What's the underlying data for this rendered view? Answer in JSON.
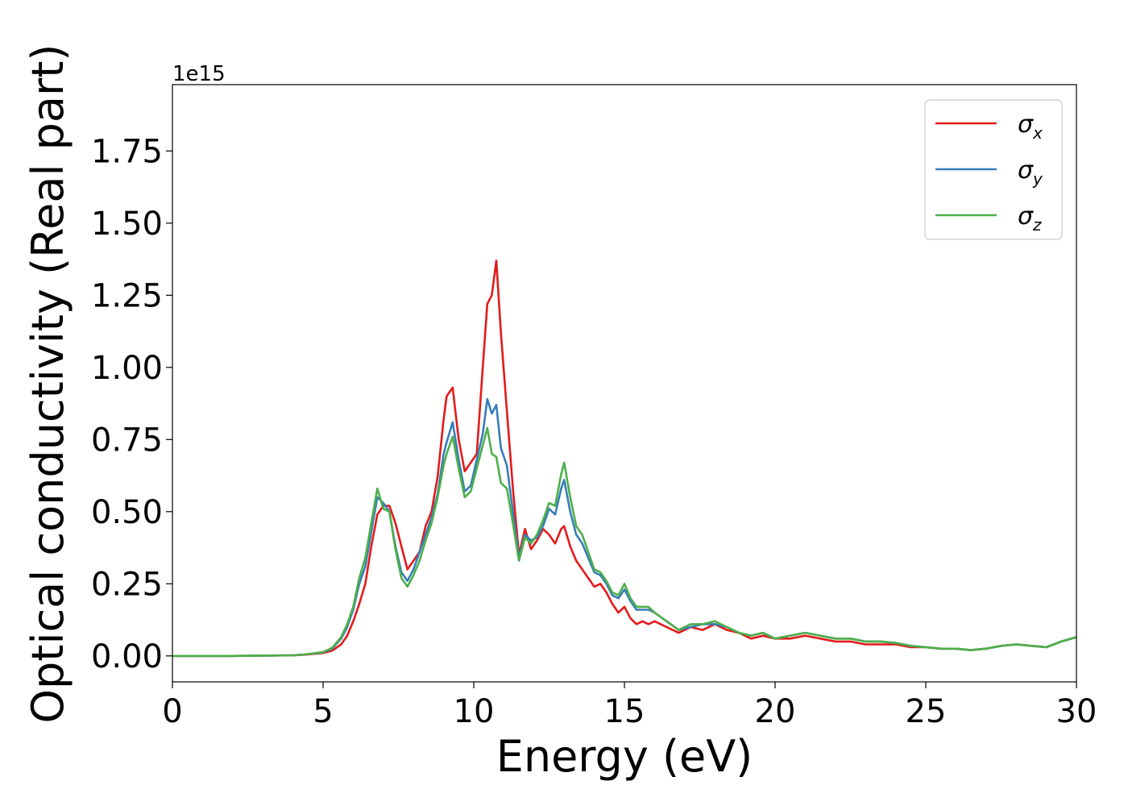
{
  "chart_data": {
    "type": "line",
    "xlabel": "Energy (eV)",
    "ylabel": "Optical conductivity (Real part)",
    "y_offset_label": "1e15",
    "xlim": [
      0,
      30
    ],
    "ylim": [
      -0.09,
      1.98
    ],
    "y_scale_factor": 1000000000000000.0,
    "x_ticks": [
      0,
      5,
      10,
      15,
      20,
      25,
      30
    ],
    "x_tick_labels": [
      "0",
      "5",
      "10",
      "15",
      "20",
      "25",
      "30"
    ],
    "y_ticks": [
      0.0,
      0.25,
      0.5,
      0.75,
      1.0,
      1.25,
      1.5,
      1.75
    ],
    "y_tick_labels": [
      "0.00",
      "0.25",
      "0.50",
      "0.75",
      "1.00",
      "1.25",
      "1.50",
      "1.75"
    ],
    "grid": false,
    "legend_position": "top-right",
    "series": [
      {
        "name": "σx",
        "legend_base": "σ",
        "legend_sub": "x",
        "color": "#e41a1c",
        "x": [
          0,
          2,
          4,
          4.5,
          5,
          5.3,
          5.6,
          5.8,
          6.0,
          6.2,
          6.4,
          6.6,
          6.8,
          7.0,
          7.2,
          7.4,
          7.6,
          7.8,
          8.0,
          8.2,
          8.4,
          8.6,
          8.8,
          9.0,
          9.1,
          9.3,
          9.5,
          9.7,
          9.9,
          10.1,
          10.3,
          10.45,
          10.6,
          10.75,
          10.9,
          11.1,
          11.3,
          11.5,
          11.7,
          11.9,
          12.1,
          12.3,
          12.5,
          12.7,
          12.9,
          13.0,
          13.2,
          13.4,
          13.6,
          13.8,
          14.0,
          14.2,
          14.4,
          14.6,
          14.8,
          15.0,
          15.2,
          15.4,
          15.6,
          15.8,
          16.0,
          16.4,
          16.8,
          17.2,
          17.6,
          18.0,
          18.4,
          18.8,
          19.2,
          19.6,
          20.0,
          20.5,
          21.0,
          21.5,
          22.0,
          22.5,
          23.0,
          23.5,
          24.0,
          24.5,
          25.0,
          25.5,
          26.0,
          26.5,
          27.0,
          27.5,
          28.0,
          28.5,
          29.0,
          29.5,
          30.0
        ],
        "y": [
          0.0,
          0.0,
          0.002,
          0.005,
          0.01,
          0.018,
          0.04,
          0.07,
          0.12,
          0.18,
          0.25,
          0.38,
          0.49,
          0.52,
          0.52,
          0.46,
          0.38,
          0.3,
          0.33,
          0.36,
          0.45,
          0.5,
          0.62,
          0.82,
          0.9,
          0.93,
          0.75,
          0.64,
          0.67,
          0.7,
          1.0,
          1.22,
          1.25,
          1.37,
          1.12,
          0.85,
          0.58,
          0.35,
          0.44,
          0.37,
          0.4,
          0.44,
          0.42,
          0.39,
          0.44,
          0.45,
          0.38,
          0.33,
          0.3,
          0.27,
          0.24,
          0.25,
          0.22,
          0.18,
          0.15,
          0.17,
          0.13,
          0.11,
          0.12,
          0.11,
          0.12,
          0.1,
          0.08,
          0.1,
          0.09,
          0.11,
          0.09,
          0.08,
          0.06,
          0.07,
          0.06,
          0.06,
          0.07,
          0.06,
          0.05,
          0.05,
          0.04,
          0.04,
          0.04,
          0.03,
          0.03,
          0.025,
          0.025,
          0.02,
          0.025,
          0.035,
          0.04,
          0.035,
          0.03,
          0.05,
          0.065
        ]
      },
      {
        "name": "σy",
        "legend_base": "σ",
        "legend_sub": "y",
        "color": "#377eb8",
        "x": [
          0,
          2,
          4,
          4.5,
          5,
          5.3,
          5.6,
          5.8,
          6.0,
          6.2,
          6.4,
          6.6,
          6.8,
          7.0,
          7.2,
          7.4,
          7.6,
          7.8,
          8.0,
          8.2,
          8.4,
          8.6,
          8.8,
          9.0,
          9.1,
          9.3,
          9.5,
          9.7,
          9.9,
          10.1,
          10.3,
          10.45,
          10.6,
          10.75,
          10.9,
          11.1,
          11.3,
          11.5,
          11.7,
          11.9,
          12.1,
          12.3,
          12.5,
          12.7,
          12.9,
          13.0,
          13.2,
          13.4,
          13.6,
          13.8,
          14.0,
          14.2,
          14.4,
          14.6,
          14.8,
          15.0,
          15.2,
          15.4,
          15.6,
          15.8,
          16.0,
          16.4,
          16.8,
          17.2,
          17.6,
          18.0,
          18.4,
          18.8,
          19.2,
          19.6,
          20.0,
          20.5,
          21.0,
          21.5,
          22.0,
          22.5,
          23.0,
          23.5,
          24.0,
          24.5,
          25.0,
          25.5,
          26.0,
          26.5,
          27.0,
          27.5,
          28.0,
          28.5,
          29.0,
          29.5,
          30.0
        ],
        "y": [
          0.0,
          0.0,
          0.002,
          0.006,
          0.012,
          0.025,
          0.06,
          0.1,
          0.16,
          0.25,
          0.31,
          0.43,
          0.55,
          0.53,
          0.5,
          0.38,
          0.29,
          0.26,
          0.3,
          0.36,
          0.42,
          0.48,
          0.56,
          0.7,
          0.74,
          0.81,
          0.68,
          0.57,
          0.59,
          0.68,
          0.77,
          0.89,
          0.84,
          0.87,
          0.72,
          0.66,
          0.5,
          0.34,
          0.42,
          0.4,
          0.41,
          0.45,
          0.51,
          0.49,
          0.58,
          0.61,
          0.5,
          0.42,
          0.39,
          0.34,
          0.29,
          0.28,
          0.25,
          0.21,
          0.2,
          0.23,
          0.19,
          0.16,
          0.16,
          0.16,
          0.15,
          0.12,
          0.09,
          0.1,
          0.11,
          0.11,
          0.1,
          0.08,
          0.07,
          0.08,
          0.06,
          0.07,
          0.08,
          0.07,
          0.06,
          0.06,
          0.05,
          0.05,
          0.045,
          0.035,
          0.03,
          0.025,
          0.025,
          0.02,
          0.025,
          0.035,
          0.04,
          0.035,
          0.03,
          0.05,
          0.065
        ]
      },
      {
        "name": "σz",
        "legend_base": "σ",
        "legend_sub": "z",
        "color": "#4daf4a",
        "x": [
          0,
          2,
          4,
          4.5,
          5,
          5.3,
          5.6,
          5.8,
          6.0,
          6.2,
          6.4,
          6.6,
          6.8,
          7.0,
          7.2,
          7.4,
          7.6,
          7.8,
          8.0,
          8.2,
          8.4,
          8.6,
          8.8,
          9.0,
          9.1,
          9.3,
          9.5,
          9.7,
          9.9,
          10.1,
          10.3,
          10.45,
          10.6,
          10.75,
          10.9,
          11.1,
          11.3,
          11.5,
          11.7,
          11.9,
          12.1,
          12.3,
          12.5,
          12.7,
          12.9,
          13.0,
          13.2,
          13.4,
          13.6,
          13.8,
          14.0,
          14.2,
          14.4,
          14.6,
          14.8,
          15.0,
          15.2,
          15.4,
          15.6,
          15.8,
          16.0,
          16.4,
          16.8,
          17.2,
          17.6,
          18.0,
          18.4,
          18.8,
          19.2,
          19.6,
          20.0,
          20.5,
          21.0,
          21.5,
          22.0,
          22.5,
          23.0,
          23.5,
          24.0,
          24.5,
          25.0,
          25.5,
          26.0,
          26.5,
          27.0,
          27.5,
          28.0,
          28.5,
          29.0,
          29.5,
          30.0
        ],
        "y": [
          0.0,
          0.0,
          0.002,
          0.006,
          0.013,
          0.028,
          0.065,
          0.11,
          0.17,
          0.27,
          0.34,
          0.46,
          0.58,
          0.51,
          0.5,
          0.37,
          0.27,
          0.24,
          0.28,
          0.33,
          0.4,
          0.46,
          0.55,
          0.66,
          0.7,
          0.76,
          0.65,
          0.55,
          0.57,
          0.65,
          0.73,
          0.79,
          0.7,
          0.69,
          0.6,
          0.58,
          0.46,
          0.33,
          0.41,
          0.39,
          0.42,
          0.47,
          0.53,
          0.52,
          0.63,
          0.67,
          0.55,
          0.45,
          0.42,
          0.36,
          0.3,
          0.29,
          0.26,
          0.22,
          0.21,
          0.25,
          0.2,
          0.17,
          0.17,
          0.17,
          0.15,
          0.12,
          0.09,
          0.11,
          0.11,
          0.12,
          0.1,
          0.08,
          0.07,
          0.08,
          0.06,
          0.07,
          0.08,
          0.07,
          0.06,
          0.06,
          0.05,
          0.05,
          0.045,
          0.035,
          0.03,
          0.025,
          0.025,
          0.02,
          0.025,
          0.035,
          0.04,
          0.035,
          0.03,
          0.05,
          0.065
        ]
      }
    ]
  }
}
